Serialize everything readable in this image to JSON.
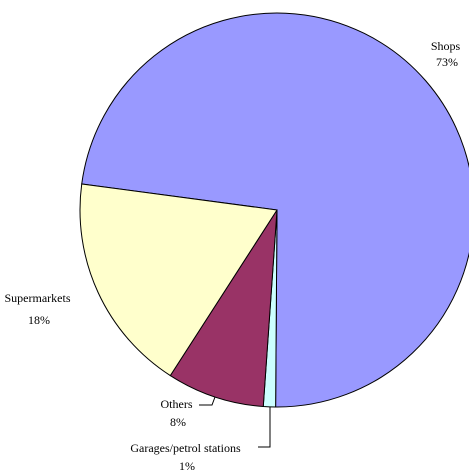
{
  "chart_data": {
    "type": "pie",
    "title": "",
    "legend": "none",
    "slices": [
      {
        "label": "Shops",
        "value": 73,
        "value_label": "73%",
        "color": "#9999ff"
      },
      {
        "label": "Garages/petrol stations",
        "value": 1,
        "value_label": "1%",
        "color": "#ccffff"
      },
      {
        "label": "Others",
        "value": 8,
        "value_label": "8%",
        "color": "#993366"
      },
      {
        "label": "Supermarkets",
        "value": 18,
        "value_label": "18%",
        "color": "#ffffcc"
      }
    ]
  }
}
